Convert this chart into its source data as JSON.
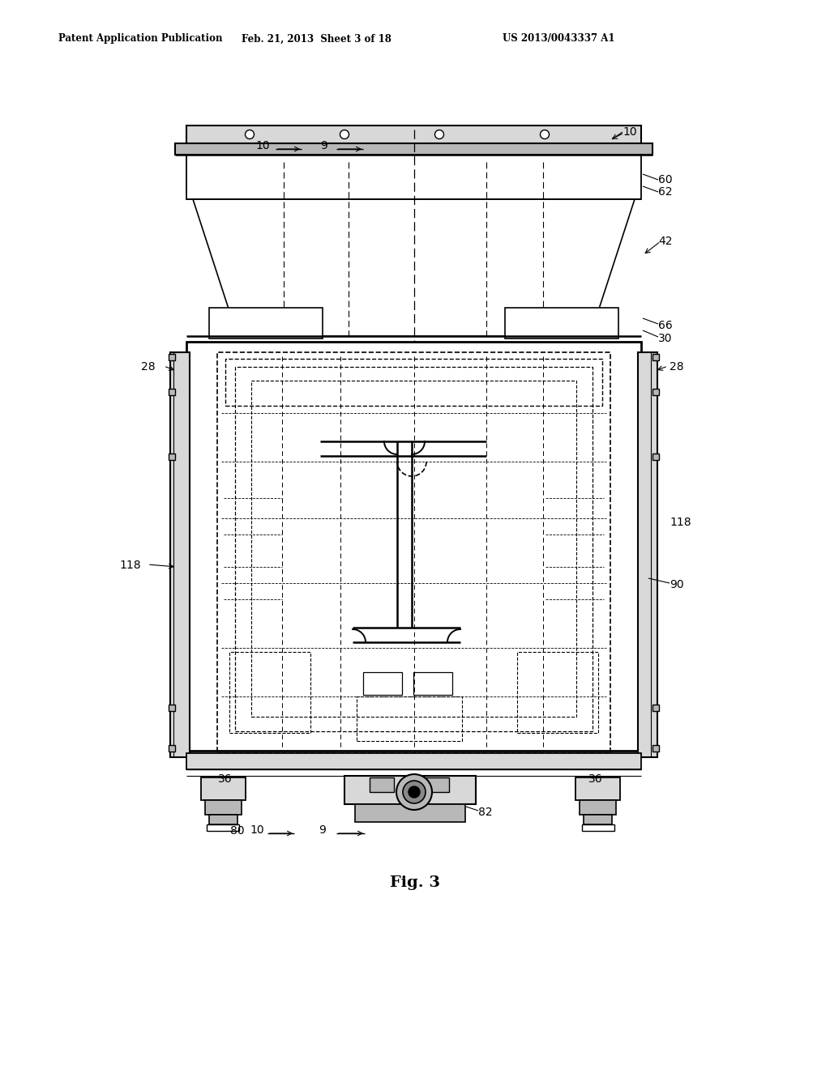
{
  "header_left": "Patent Application Publication",
  "header_mid": "Feb. 21, 2013  Sheet 3 of 18",
  "header_right": "US 2013/0043337 A1",
  "fig_label": "Fig. 3",
  "background_color": "#ffffff",
  "line_color": "#000000",
  "gray_light": "#d8d8d8",
  "gray_mid": "#b8b8b8",
  "gray_dark": "#888888"
}
